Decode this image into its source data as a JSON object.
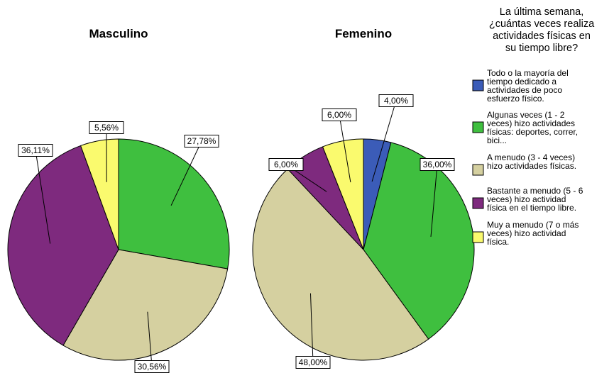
{
  "legend": {
    "title_lines": [
      "La última semana,",
      "¿cuántas veces realiza",
      "actividades físicas en",
      "su tiempo libre?"
    ],
    "placement": "right",
    "items": [
      {
        "lines": [
          "Todo o la mayoría del",
          "tiempo dedicado a",
          "actividades de poco",
          "esfuerzo físico."
        ],
        "color": "#3b5cb8"
      },
      {
        "lines": [
          "Algunas veces (1 - 2",
          "veces) hizo actividades",
          "físicas: deportes, correr,",
          "bici..."
        ],
        "color": "#3fbf3f"
      },
      {
        "lines": [
          "A menudo (3 - 4 veces)",
          "hizo actividades físicas."
        ],
        "color": "#d5d0a0"
      },
      {
        "lines": [
          "Bastante a menudo (5 - 6",
          "veces) hizo actividad",
          "física en el tiempo libre."
        ],
        "color": "#7e2a7e"
      },
      {
        "lines": [
          "Muy a menudo (7 o más",
          "veces) hizo actividad",
          "física."
        ],
        "color": "#fafa6e"
      }
    ]
  },
  "chart_data": [
    {
      "type": "pie",
      "title": "Masculino",
      "categories": [
        "Algunas veces (1 - 2 veces) hizo actividades físicas: deportes, correr, bici...",
        "A menudo (3 - 4 veces) hizo actividades físicas.",
        "Bastante a menudo (5 - 6 veces) hizo actividad física en el tiempo libre.",
        "Muy a menudo (7 o más veces) hizo actividad física."
      ],
      "values": [
        27.78,
        30.56,
        36.11,
        5.56
      ],
      "labels": [
        "27,78%",
        "30,56%",
        "36,11%",
        "5,56%"
      ],
      "colors": [
        "#3fbf3f",
        "#d5d0a0",
        "#7e2a7e",
        "#fafa6e"
      ]
    },
    {
      "type": "pie",
      "title": "Femenino",
      "categories": [
        "Todo o la mayoría del tiempo dedicado a actividades de poco esfuerzo físico.",
        "Algunas veces (1 - 2 veces) hizo actividades físicas: deportes, correr, bici...",
        "A menudo (3 - 4 veces) hizo actividades físicas.",
        "Bastante a menudo (5 - 6 veces) hizo actividad física en el tiempo libre.",
        "Muy a menudo (7 o más veces) hizo actividad física."
      ],
      "values": [
        4.0,
        36.0,
        48.0,
        6.0,
        6.0
      ],
      "labels": [
        "4,00%",
        "36,00%",
        "48,00%",
        "6,00%",
        "6,00%"
      ],
      "colors": [
        "#3b5cb8",
        "#3fbf3f",
        "#d5d0a0",
        "#7e2a7e",
        "#fafa6e"
      ]
    }
  ]
}
